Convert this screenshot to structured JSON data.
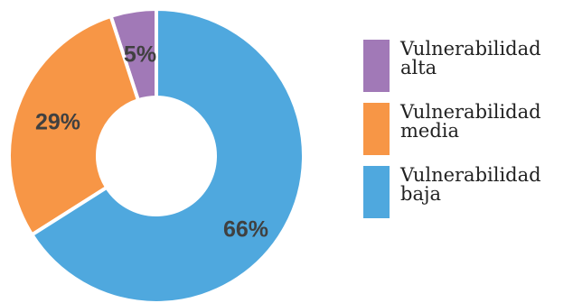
{
  "chart_data": {
    "type": "pie",
    "variant": "donut",
    "slices": [
      {
        "name": "Vulnerabilidad alta",
        "value": 5,
        "label": "5%",
        "color": "#a179b7"
      },
      {
        "name": "Vulnerabilidad media",
        "value": 29,
        "label": "29%",
        "color": "#f79646"
      },
      {
        "name": "Vulnerabilidad baja",
        "value": 66,
        "label": "66%",
        "color": "#4fa8de"
      }
    ],
    "legend_position": "right"
  },
  "legend": {
    "items": [
      {
        "label": "Vulnerabilidad alta",
        "color": "#a179b7"
      },
      {
        "label": "Vulnerabilidad media",
        "color": "#f79646"
      },
      {
        "label": "Vulnerabilidad baja",
        "color": "#4fa8de"
      }
    ]
  }
}
